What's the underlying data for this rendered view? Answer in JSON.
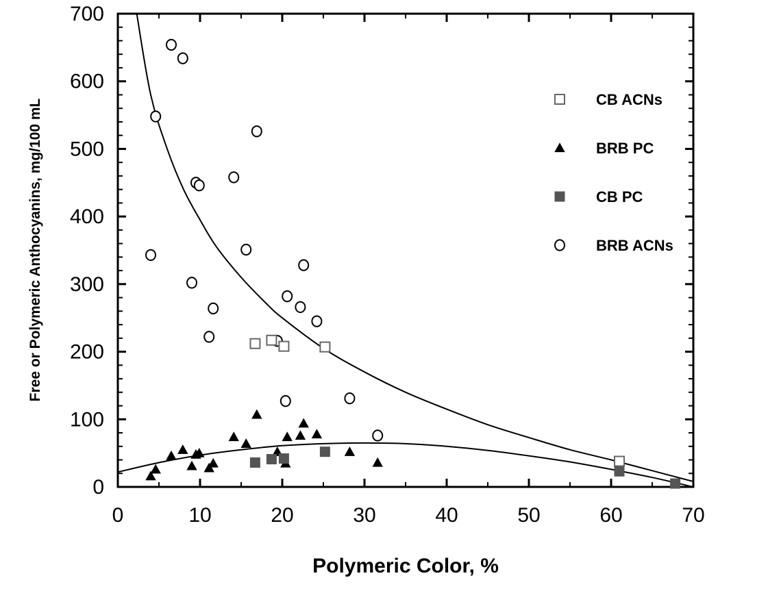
{
  "chart_data": {
    "type": "scatter",
    "title": "",
    "xlabel": "Polymeric Color, %",
    "ylabel": "Free or Polymeric Anthocyanins, mg/100 mL",
    "xlim": [
      0,
      70
    ],
    "ylim": [
      0,
      700
    ],
    "x_ticks": [
      "0",
      "10",
      "20",
      "30",
      "40",
      "50",
      "60",
      "70"
    ],
    "y_ticks": [
      "0",
      "100",
      "200",
      "300",
      "400",
      "500",
      "600",
      "700"
    ],
    "grid": false,
    "legend_position": "top-right",
    "series": [
      {
        "name": "CB ACNs",
        "marker": "open-square",
        "color": "#666666",
        "points": [
          [
            16.7,
            212
          ],
          [
            18.7,
            217
          ],
          [
            20.2,
            208
          ],
          [
            25.2,
            207
          ],
          [
            61.0,
            38
          ]
        ]
      },
      {
        "name": "BRB PC",
        "marker": "filled-triangle",
        "color": "#000000",
        "points": [
          [
            4.0,
            16
          ],
          [
            4.6,
            26
          ],
          [
            6.5,
            46
          ],
          [
            7.9,
            55
          ],
          [
            9.0,
            31
          ],
          [
            9.5,
            48
          ],
          [
            9.9,
            50
          ],
          [
            11.1,
            28
          ],
          [
            11.6,
            35
          ],
          [
            14.1,
            74
          ],
          [
            15.6,
            64
          ],
          [
            16.9,
            107
          ],
          [
            19.4,
            52
          ],
          [
            20.4,
            35
          ],
          [
            20.6,
            74
          ],
          [
            22.2,
            76
          ],
          [
            22.6,
            94
          ],
          [
            24.2,
            78
          ],
          [
            28.2,
            52
          ],
          [
            31.6,
            36
          ]
        ]
      },
      {
        "name": "CB PC",
        "marker": "filled-square",
        "color": "#555555",
        "points": [
          [
            16.7,
            36
          ],
          [
            18.7,
            41
          ],
          [
            20.2,
            42
          ],
          [
            25.2,
            52
          ],
          [
            61.0,
            23
          ],
          [
            67.8,
            5
          ]
        ]
      },
      {
        "name": "BRB ACNs",
        "marker": "open-circle",
        "color": "#000000",
        "points": [
          [
            4.0,
            343
          ],
          [
            4.6,
            548
          ],
          [
            6.5,
            654
          ],
          [
            7.9,
            634
          ],
          [
            9.0,
            302
          ],
          [
            9.5,
            450
          ],
          [
            9.9,
            446
          ],
          [
            11.1,
            222
          ],
          [
            11.6,
            264
          ],
          [
            14.1,
            458
          ],
          [
            15.6,
            351
          ],
          [
            16.9,
            526
          ],
          [
            19.4,
            216
          ],
          [
            20.4,
            127
          ],
          [
            20.6,
            282
          ],
          [
            22.2,
            266
          ],
          [
            22.6,
            328
          ],
          [
            24.2,
            245
          ],
          [
            28.2,
            131
          ],
          [
            31.6,
            76
          ]
        ]
      }
    ],
    "fit_curves": [
      {
        "description": "decreasing fit through ACN data",
        "points": [
          [
            2.3,
            700
          ],
          [
            4,
            580
          ],
          [
            6,
            500
          ],
          [
            8,
            440
          ],
          [
            10,
            395
          ],
          [
            12,
            355
          ],
          [
            15,
            310
          ],
          [
            18,
            272
          ],
          [
            20,
            250
          ],
          [
            25,
            205
          ],
          [
            30,
            170
          ],
          [
            35,
            140
          ],
          [
            40,
            115
          ],
          [
            45,
            92
          ],
          [
            50,
            73
          ],
          [
            55,
            55
          ],
          [
            60,
            40
          ],
          [
            65,
            24
          ],
          [
            70,
            8
          ]
        ]
      },
      {
        "description": "quadratic fit through PC data",
        "points": [
          [
            0,
            22
          ],
          [
            5,
            36
          ],
          [
            10,
            47
          ],
          [
            15,
            55
          ],
          [
            20,
            61
          ],
          [
            25,
            64
          ],
          [
            30,
            65
          ],
          [
            35,
            64
          ],
          [
            40,
            60
          ],
          [
            45,
            54
          ],
          [
            50,
            46
          ],
          [
            55,
            37
          ],
          [
            60,
            26
          ],
          [
            65,
            14
          ],
          [
            70,
            0
          ]
        ]
      }
    ]
  }
}
